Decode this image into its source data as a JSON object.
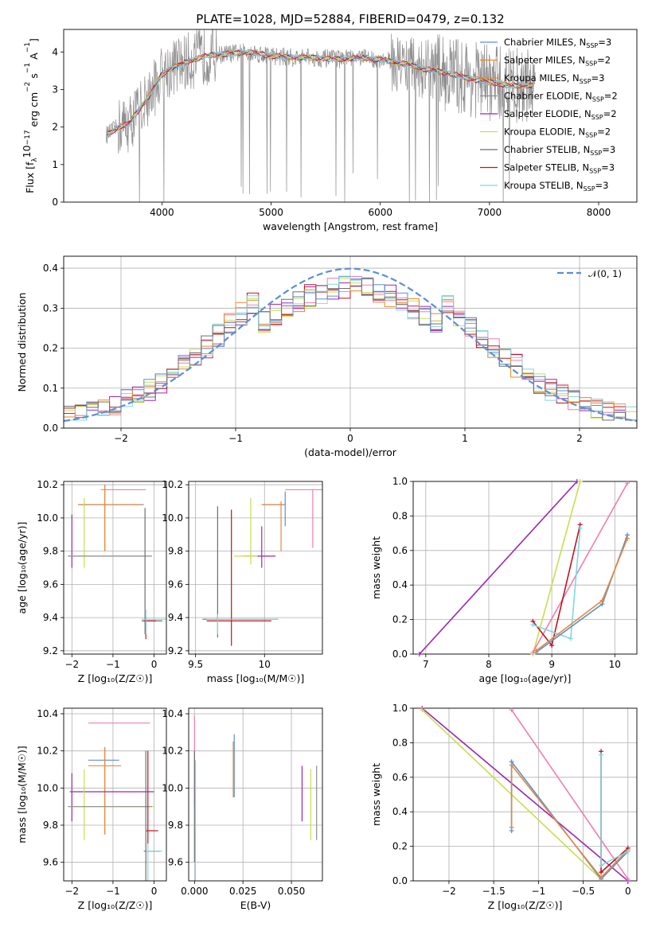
{
  "figure": {
    "title": "PLATE=1028, MJD=52884, FIBERID=0479, z=0.132"
  },
  "colors": {
    "Chabrier MILES": "#5b8fd6",
    "Salpeter MILES": "#e9881e",
    "Kroupa MILES": "#e9881e",
    "Chabrier ELODIE": "#8e8e8e",
    "Salpeter ELODIE": "#9c27b0",
    "Kroupa ELODIE": "#c5e04c",
    "Chabrier STELIB": "#6e6e6e",
    "Salpeter STELIB": "#c1121f",
    "Kroupa STELIB": "#7fd8e0",
    "Chabrier MILES (z)": "#5b8fd6",
    "Kroupa MILES (z)": "#e4893a",
    "Kroupa": "#f07db0",
    "normal_curve": "#5b8fd6"
  },
  "chart_data": [
    {
      "id": "spectrum",
      "type": "line",
      "xlabel": "wavelength [Angstrom, rest frame]",
      "ylabel_parts": [
        "Flux [f",
        "λ",
        "10",
        "−17",
        " erg cm",
        "−2",
        " s",
        "−1",
        " A",
        "−1",
        "]"
      ],
      "xlim": [
        3100,
        8350
      ],
      "ylim": [
        0,
        4.6
      ],
      "xticks": [
        4000,
        5000,
        6000,
        7000,
        8000
      ],
      "yticks": [
        0,
        1,
        2,
        3,
        4
      ],
      "continuum": {
        "x": [
          3500,
          3600,
          3700,
          3800,
          3900,
          4000,
          4100,
          4200,
          4400,
          4600,
          4800,
          5000,
          5200,
          5400,
          5600,
          5800,
          6000,
          6200,
          6400,
          6600,
          6800,
          7000,
          7200,
          7400
        ],
        "y": [
          1.8,
          2.0,
          2.1,
          2.5,
          2.9,
          3.4,
          3.6,
          3.7,
          3.9,
          3.95,
          4.0,
          3.9,
          3.85,
          3.85,
          3.8,
          3.85,
          3.8,
          3.7,
          3.55,
          3.45,
          3.3,
          3.2,
          3.1,
          3.1
        ]
      },
      "legend_position": "upper right",
      "legend": [
        {
          "label": "Chabrier MILES, N",
          "sub": "SSP",
          "tail": "=3"
        },
        {
          "label": "Salpeter MILES, N",
          "sub": "SSP",
          "tail": "=2"
        },
        {
          "label": "Kroupa MILES, N",
          "sub": "SSP",
          "tail": "=3"
        },
        {
          "label": "Chabrier ELODIE, N",
          "sub": "SSP",
          "tail": "=2"
        },
        {
          "label": "Salpeter ELODIE, N",
          "sub": "SSP",
          "tail": "=2"
        },
        {
          "label": "Kroupa ELODIE, N",
          "sub": "SSP",
          "tail": "=2"
        },
        {
          "label": "Chabrier STELIB, N",
          "sub": "SSP",
          "tail": "=3"
        },
        {
          "label": "Salpeter STELIB, N",
          "sub": "SSP",
          "tail": "=3"
        },
        {
          "label": "Kroupa STELIB, N",
          "sub": "SSP",
          "tail": "=3"
        }
      ]
    },
    {
      "id": "residuals",
      "type": "line",
      "xlabel": "(data-model)/error",
      "ylabel": "Normed distribution",
      "xlim": [
        -2.5,
        2.5
      ],
      "ylim": [
        0,
        0.43
      ],
      "xticks": [
        -2,
        -1,
        0,
        1,
        2
      ],
      "yticks": [
        0.0,
        0.1,
        0.2,
        0.3,
        0.4
      ],
      "bin_width": 0.1,
      "legend_label": "𝒩(0, 1)",
      "legend_position": "upper right"
    },
    {
      "id": "age_vs_Z",
      "type": "scatter",
      "xlabel": "Z [log₁₀(Z/Z☉)]",
      "ylabel": "age  [log₁₀(age/yr)]",
      "xlim": [
        -2.2,
        0.3
      ],
      "ylim": [
        9.18,
        10.22
      ],
      "xticks": [
        -2,
        -1,
        0
      ],
      "yticks": [
        9.2,
        9.4,
        9.6,
        9.8,
        10.0,
        10.2
      ],
      "points": [
        {
          "c": "Kroupa",
          "x": -0.85,
          "y": 10.17,
          "xe": [
            -1.3,
            -0.2
          ],
          "ye": null
        },
        {
          "c": "Chabrier MILES (z)",
          "x": -1.2,
          "y": 10.08,
          "xe": [
            -1.85,
            -0.25
          ],
          "ye": [
            9.8,
            10.2
          ]
        },
        {
          "c": "Kroupa MILES (z)",
          "x": -1.2,
          "y": 10.08,
          "xe": [
            -1.85,
            -0.3
          ],
          "ye": [
            9.8,
            10.2
          ]
        },
        {
          "c": "Salpeter ELODIE",
          "x": -2.0,
          "y": 9.77,
          "xe": null,
          "ye": [
            9.7,
            10.02
          ]
        },
        {
          "c": "Kroupa ELODIE",
          "x": -1.7,
          "y": 9.77,
          "xe": [
            -2.05,
            -0.1
          ],
          "ye": [
            9.7,
            10.12
          ]
        },
        {
          "c": "Chabrier ELODIE",
          "x": -1.1,
          "y": 9.77,
          "xe": [
            -2.1,
            -0.05
          ],
          "ye": null
        },
        {
          "c": "Chabrier STELIB",
          "x": -0.22,
          "y": 9.38,
          "xe": [
            -0.3,
            0.2
          ],
          "ye": [
            9.3,
            10.06
          ]
        },
        {
          "c": "Salpeter STELIB",
          "x": -0.2,
          "y": 9.38,
          "xe": [
            -0.25,
            0.05
          ],
          "ye": [
            9.27,
            9.4
          ]
        },
        {
          "c": "Kroupa STELIB",
          "x": -0.2,
          "y": 9.39,
          "xe": [
            -0.3,
            0.3
          ],
          "ye": [
            9.3,
            9.45
          ]
        }
      ]
    },
    {
      "id": "age_vs_mass",
      "type": "scatter",
      "xlabel": "mass [log₁₀(M/M☉)]",
      "ylabel": "",
      "xlim": [
        9.45,
        10.42
      ],
      "ylim": [
        9.18,
        10.22
      ],
      "xticks": [
        9.5,
        10.0
      ],
      "yticks": [
        9.2,
        9.4,
        9.6,
        9.8,
        10.0,
        10.2
      ],
      "points": [
        {
          "c": "Kroupa",
          "x": 10.35,
          "y": 10.17,
          "xe": [
            10.15,
            10.42
          ],
          "ye": [
            9.82,
            10.17
          ]
        },
        {
          "c": "Chabrier MILES (z)",
          "x": 10.15,
          "y": 10.08,
          "xe": [
            9.98,
            10.15
          ],
          "ye": [
            9.95,
            10.16
          ]
        },
        {
          "c": "Kroupa MILES (z)",
          "x": 10.12,
          "y": 10.08,
          "xe": [
            9.98,
            10.14
          ],
          "ye": [
            9.8,
            10.1
          ]
        },
        {
          "c": "Salpeter ELODIE",
          "x": 9.98,
          "y": 9.77,
          "xe": [
            9.85,
            10.08
          ],
          "ye": [
            9.7,
            9.95
          ]
        },
        {
          "c": "Kroupa ELODIE",
          "x": 9.9,
          "y": 9.77,
          "xe": [
            9.78,
            9.95
          ],
          "ye": [
            9.72,
            10.12
          ]
        },
        {
          "c": "Chabrier STELIB",
          "x": 9.66,
          "y": 9.39,
          "xe": [
            9.55,
            10.1
          ],
          "ye": [
            9.28,
            10.07
          ]
        },
        {
          "c": "Salpeter STELIB",
          "x": 9.76,
          "y": 9.38,
          "xe": [
            9.58,
            10.05
          ],
          "ye": [
            9.23,
            10.05
          ]
        },
        {
          "c": "Kroupa STELIB",
          "x": 9.66,
          "y": 9.39,
          "xe": [
            9.58,
            10.1
          ],
          "ye": [
            9.3,
            9.42
          ]
        }
      ]
    },
    {
      "id": "weight_vs_age",
      "type": "line",
      "xlabel": "age  [log₁₀(age/yr)]",
      "ylabel": "mass weight",
      "xlim": [
        6.8,
        10.35
      ],
      "ylim": [
        0,
        1
      ],
      "xticks": [
        7,
        8,
        9,
        10
      ],
      "yticks": [
        0.0,
        0.2,
        0.4,
        0.6,
        0.8,
        1.0
      ],
      "lines": [
        {
          "c": "Salpeter ELODIE",
          "x": [
            6.9,
            9.4
          ],
          "y": [
            0.0,
            1.0
          ]
        },
        {
          "c": "Kroupa ELODIE",
          "x": [
            8.7,
            9.45
          ],
          "y": [
            0.0,
            1.0
          ]
        },
        {
          "c": "Kroupa",
          "x": [
            8.7,
            10.2
          ],
          "y": [
            0.01,
            0.99
          ]
        },
        {
          "c": "Salpeter STELIB",
          "x": [
            8.7,
            9.0,
            9.45
          ],
          "y": [
            0.19,
            0.05,
            0.75
          ]
        },
        {
          "c": "Kroupa STELIB",
          "x": [
            8.7,
            9.3,
            9.45
          ],
          "y": [
            0.17,
            0.09,
            0.73
          ]
        },
        {
          "c": "Chabrier MILES (z)",
          "x": [
            8.75,
            9.8,
            10.2
          ],
          "y": [
            0.01,
            0.29,
            0.69
          ]
        },
        {
          "c": "Kroupa MILES (z)",
          "x": [
            8.75,
            9.8,
            10.2
          ],
          "y": [
            0.02,
            0.31,
            0.67
          ]
        }
      ]
    },
    {
      "id": "mass_vs_Z",
      "type": "scatter",
      "xlabel": "Z [log₁₀(Z/Z☉)]",
      "ylabel": "mass [log₁₀(M/M☉)]",
      "xlim": [
        -2.2,
        0.3
      ],
      "ylim": [
        9.5,
        10.43
      ],
      "xticks": [
        -2,
        -1,
        0
      ],
      "yticks": [
        9.6,
        9.8,
        10.0,
        10.2,
        10.4
      ],
      "points": [
        {
          "c": "Kroupa",
          "x": -1.2,
          "y": 10.35,
          "xe": [
            -1.6,
            -0.1
          ],
          "ye": null
        },
        {
          "c": "Chabrier MILES (z)",
          "x": -1.2,
          "y": 10.15,
          "xe": [
            -1.6,
            -0.85
          ],
          "ye": [
            9.75,
            10.22
          ]
        },
        {
          "c": "Kroupa MILES (z)",
          "x": -1.2,
          "y": 10.12,
          "xe": [
            -1.6,
            -0.8
          ],
          "ye": [
            9.75,
            10.22
          ]
        },
        {
          "c": "Salpeter ELODIE",
          "x": -2.0,
          "y": 9.98,
          "xe": [
            -2.05,
            0.0
          ],
          "ye": [
            9.82,
            10.08
          ]
        },
        {
          "c": "Kroupa ELODIE",
          "x": -1.7,
          "y": 9.9,
          "xe": [
            -2.05,
            0.0
          ],
          "ye": [
            9.72,
            10.1
          ]
        },
        {
          "c": "Chabrier ELODIE",
          "x": -1.1,
          "y": 9.9,
          "xe": [
            -2.1,
            -0.05
          ],
          "ye": null
        },
        {
          "c": "Salpeter STELIB",
          "x": -0.15,
          "y": 9.77,
          "xe": [
            -0.2,
            0.1
          ],
          "ye": [
            9.7,
            10.2
          ]
        },
        {
          "c": "Chabrier STELIB",
          "x": -0.2,
          "y": 9.66,
          "xe": [
            -0.25,
            0.15
          ],
          "ye": [
            9.5,
            10.2
          ]
        },
        {
          "c": "Kroupa STELIB",
          "x": -0.15,
          "y": 9.66,
          "xe": [
            -0.2,
            0.2
          ],
          "ye": [
            9.5,
            9.7
          ]
        }
      ]
    },
    {
      "id": "mass_vs_ebv",
      "type": "scatter",
      "xlabel": "E(B-V)",
      "ylabel": "",
      "xlim": [
        -0.003,
        0.066
      ],
      "ylim": [
        9.5,
        10.43
      ],
      "xticks": [
        0.0,
        0.025,
        0.05
      ],
      "xticklabels": [
        "0.000",
        "0.025",
        "0.050"
      ],
      "yticks": [
        9.6,
        9.8,
        10.0,
        10.2,
        10.4
      ],
      "points": [
        {
          "c": "Kroupa",
          "x": 0.0,
          "y": 10.2,
          "xe": null,
          "ye": [
            9.9,
            10.39
          ]
        },
        {
          "c": "Chabrier STELIB",
          "x": 0.0,
          "y": 9.9,
          "xe": null,
          "ye": [
            9.6,
            10.2
          ]
        },
        {
          "c": "Kroupa STELIB",
          "x": 0.0005,
          "y": 9.66,
          "xe": null,
          "ye": [
            9.5,
            10.15
          ]
        },
        {
          "c": "Chabrier MILES (z)",
          "x": 0.0205,
          "y": 10.15,
          "xe": null,
          "ye": [
            9.95,
            10.29
          ]
        },
        {
          "c": "Kroupa MILES (z)",
          "x": 0.02,
          "y": 10.12,
          "xe": null,
          "ye": [
            9.95,
            10.25
          ]
        },
        {
          "c": "Salpeter ELODIE",
          "x": 0.0555,
          "y": 9.98,
          "xe": null,
          "ye": [
            9.82,
            10.12
          ]
        },
        {
          "c": "Kroupa ELODIE",
          "x": 0.06,
          "y": 9.9,
          "xe": null,
          "ye": [
            9.72,
            10.1
          ]
        },
        {
          "c": "Chabrier ELODIE",
          "x": 0.063,
          "y": 9.9,
          "xe": null,
          "ye": [
            9.72,
            10.12
          ]
        }
      ]
    },
    {
      "id": "weight_vs_Z",
      "type": "line",
      "xlabel": "Z [log₁₀(Z/Z☉)]",
      "ylabel": "mass weight",
      "xlim": [
        -2.4,
        0.1
      ],
      "ylim": [
        0,
        1
      ],
      "xticks": [
        -2.0,
        -1.5,
        -1.0,
        -0.5,
        0.0
      ],
      "yticks": [
        0.0,
        0.2,
        0.4,
        0.6,
        0.8,
        1.0
      ],
      "lines": [
        {
          "c": "Salpeter ELODIE",
          "x": [
            -2.3,
            0.0
          ],
          "y": [
            1.0,
            0.0
          ]
        },
        {
          "c": "Kroupa ELODIE",
          "x": [
            -2.3,
            -0.3
          ],
          "y": [
            0.99,
            0.01
          ]
        },
        {
          "c": "Kroupa",
          "x": [
            -1.3,
            0.0
          ],
          "y": [
            0.99,
            0.01
          ]
        },
        {
          "c": "Chabrier MILES (z)",
          "x": [
            -1.3,
            -1.3,
            -0.3,
            0.0
          ],
          "y": [
            0.29,
            0.69,
            0.01,
            0.17
          ]
        },
        {
          "c": "Kroupa MILES (z)",
          "x": [
            -1.3,
            -1.3,
            -0.3,
            0.0
          ],
          "y": [
            0.31,
            0.67,
            0.02,
            0.18
          ]
        },
        {
          "c": "Salpeter STELIB",
          "x": [
            -0.3,
            -0.3,
            0.0
          ],
          "y": [
            0.75,
            0.05,
            0.19
          ]
        },
        {
          "c": "Kroupa STELIB",
          "x": [
            -0.3,
            -0.3,
            0.0
          ],
          "y": [
            0.73,
            0.09,
            0.17
          ]
        }
      ]
    }
  ]
}
